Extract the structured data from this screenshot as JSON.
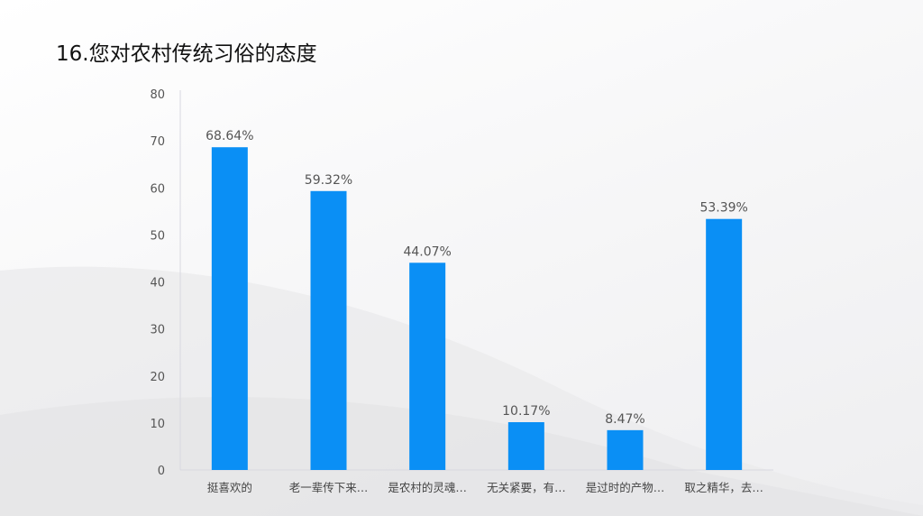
{
  "title": "16.您对农村传统习俗的态度",
  "chart_data": {
    "type": "bar",
    "title": "",
    "xlabel": "",
    "ylabel": "",
    "categories": [
      "挺喜欢的",
      "老一辈传下来…",
      "是农村的灵魂…",
      "无关紧要，有…",
      "是过时的产物…",
      "取之精华，去…"
    ],
    "values": [
      68.64,
      59.32,
      44.07,
      10.17,
      8.47,
      53.39
    ],
    "data_labels": [
      "68.64%",
      "59.32%",
      "44.07%",
      "10.17%",
      "8.47%",
      "53.39%"
    ],
    "ylim": [
      0,
      80
    ],
    "yticks": [
      0,
      10,
      20,
      30,
      40,
      50,
      60,
      70,
      80
    ],
    "grid": false,
    "bar_color": "#0a8ff5"
  }
}
